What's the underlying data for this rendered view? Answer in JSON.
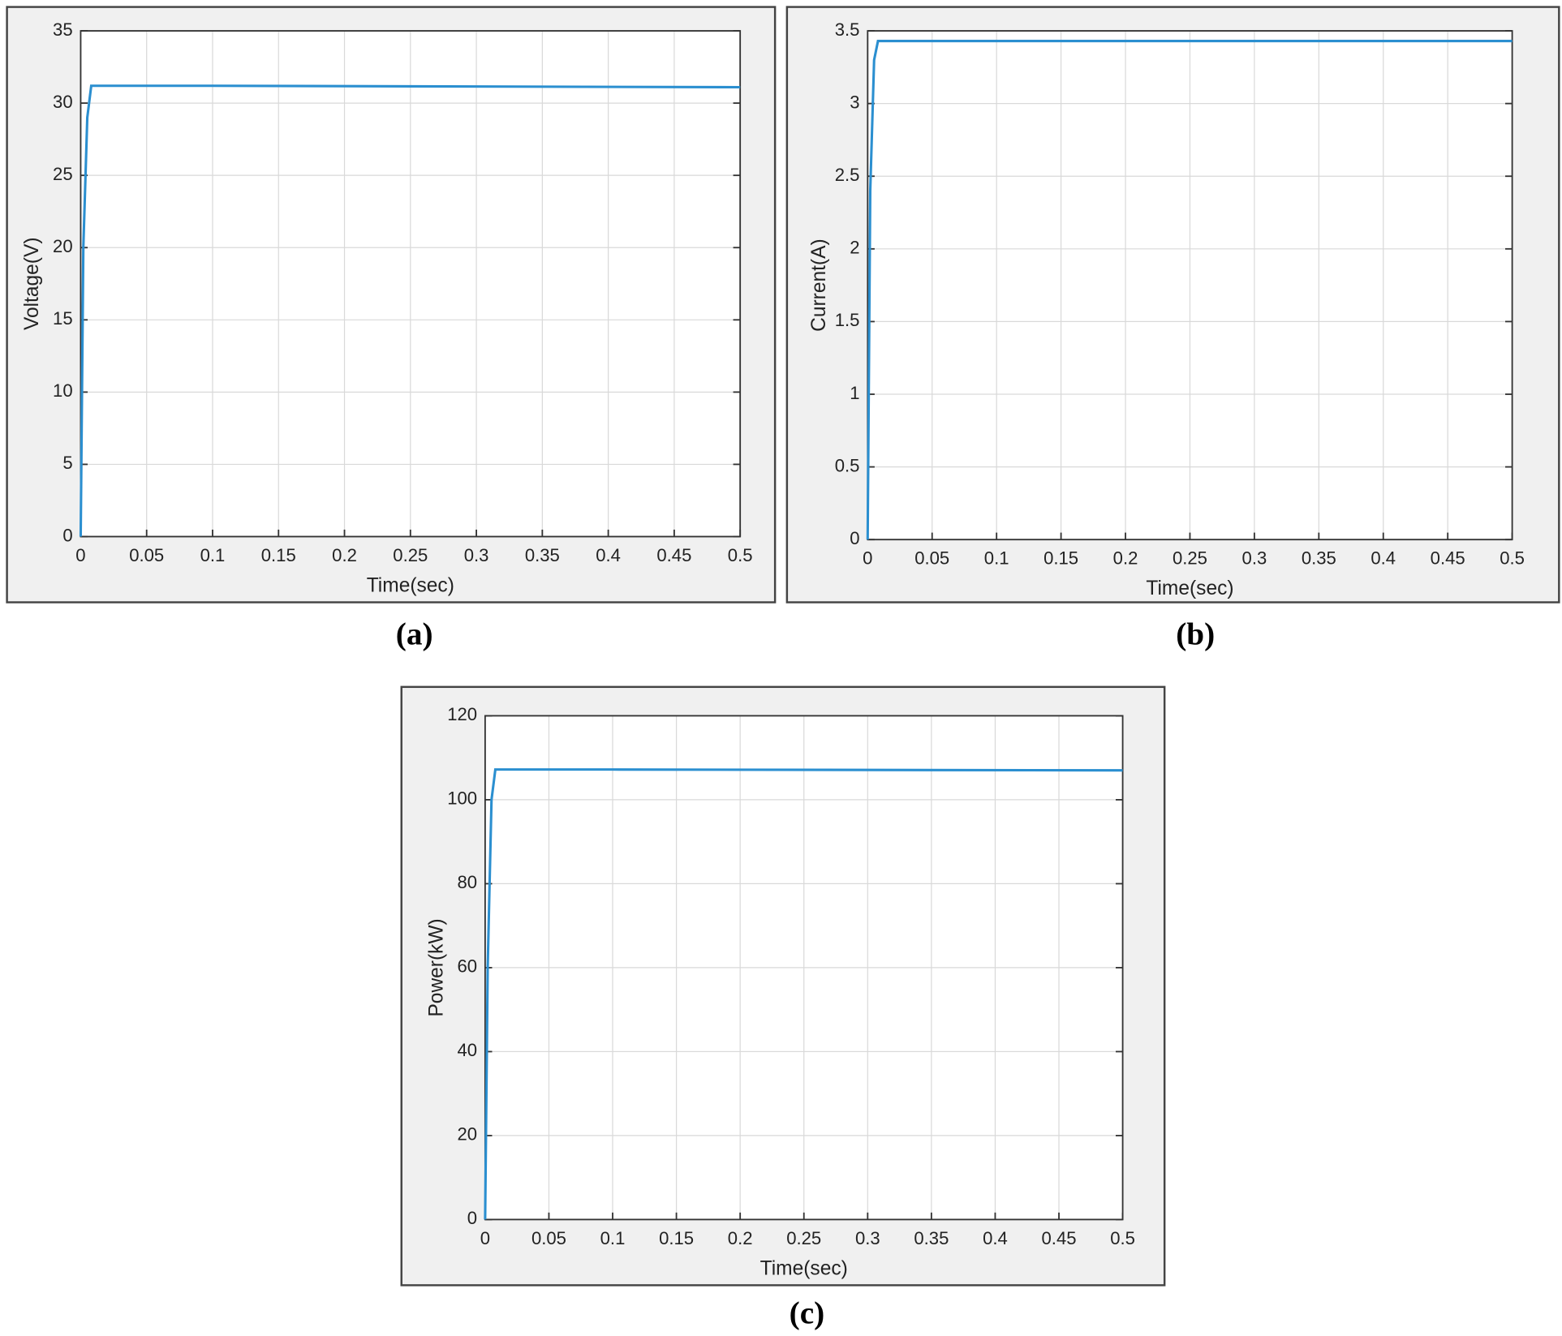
{
  "chart_data": [
    {
      "type": "line",
      "caption": "(a)",
      "xlabel": "Time(sec)",
      "ylabel": "Voltage(V)",
      "x": [
        0,
        0.002,
        0.005,
        0.008,
        0.1,
        0.5
      ],
      "series": [
        {
          "name": "Voltage",
          "color": "#2b8fd0",
          "values": [
            0,
            20,
            29,
            31.2,
            31.2,
            31.1
          ]
        }
      ],
      "xlim": [
        0,
        0.5
      ],
      "xticks": [
        0,
        0.05,
        0.1,
        0.15,
        0.2,
        0.25,
        0.3,
        0.35,
        0.4,
        0.45,
        0.5
      ],
      "ylim": [
        0,
        35
      ],
      "yticks": [
        0,
        5,
        10,
        15,
        20,
        25,
        30,
        35
      ],
      "grid": true
    },
    {
      "type": "line",
      "caption": "(b)",
      "xlabel": "Time(sec)",
      "ylabel": "Current(A)",
      "x": [
        0,
        0.002,
        0.005,
        0.008,
        0.1,
        0.5
      ],
      "series": [
        {
          "name": "Current",
          "color": "#2b8fd0",
          "values": [
            0,
            2.4,
            3.3,
            3.43,
            3.43,
            3.43
          ]
        }
      ],
      "xlim": [
        0,
        0.5
      ],
      "xticks": [
        0,
        0.05,
        0.1,
        0.15,
        0.2,
        0.25,
        0.3,
        0.35,
        0.4,
        0.45,
        0.5
      ],
      "ylim": [
        0,
        3.5
      ],
      "yticks": [
        0,
        0.5,
        1,
        1.5,
        2,
        2.5,
        3,
        3.5
      ],
      "grid": true
    },
    {
      "type": "line",
      "caption": "(c)",
      "xlabel": "Time(sec)",
      "ylabel": "Power(kW)",
      "x": [
        0,
        0.002,
        0.005,
        0.008,
        0.1,
        0.5
      ],
      "series": [
        {
          "name": "Power",
          "color": "#2b8fd0",
          "values": [
            0,
            60,
            100,
            107.2,
            107.2,
            107
          ]
        }
      ],
      "xlim": [
        0,
        0.5
      ],
      "xticks": [
        0,
        0.05,
        0.1,
        0.15,
        0.2,
        0.25,
        0.3,
        0.35,
        0.4,
        0.45,
        0.5
      ],
      "ylim": [
        0,
        120
      ],
      "yticks": [
        0,
        20,
        40,
        60,
        80,
        100,
        120
      ],
      "grid": true
    }
  ]
}
